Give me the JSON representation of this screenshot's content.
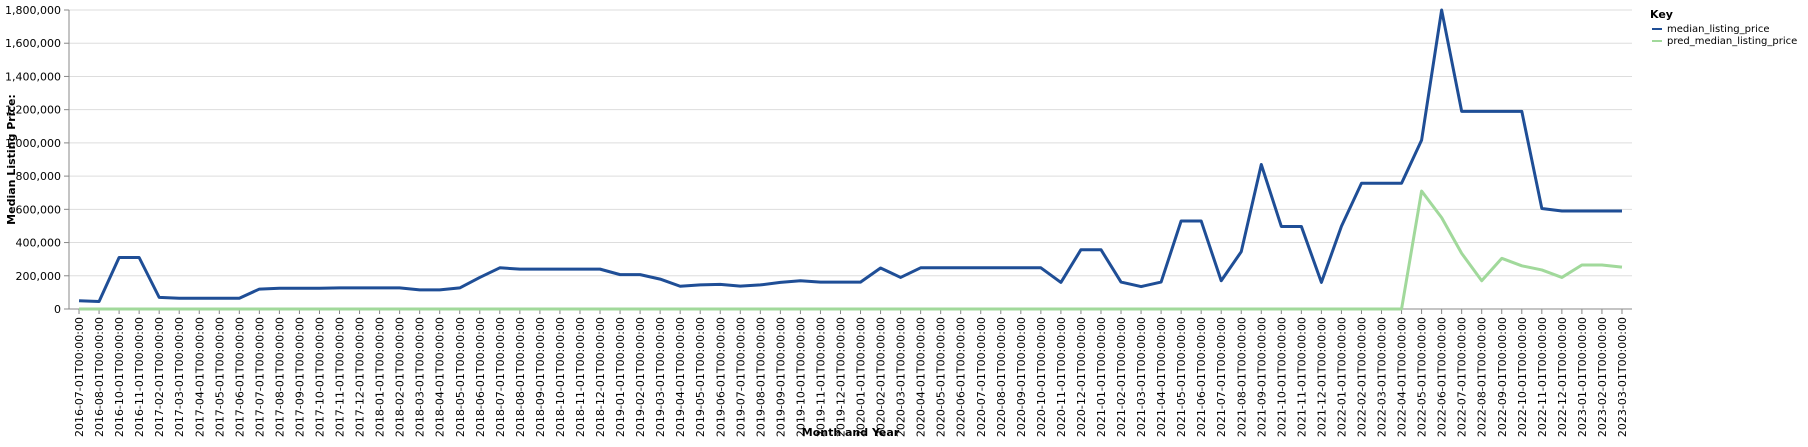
{
  "chart_data": {
    "type": "line",
    "xlabel": "Month and Year",
    "ylabel": "Median Listing Price:",
    "ylim": [
      0,
      1800000
    ],
    "yticks": [
      0,
      200000,
      400000,
      600000,
      800000,
      1000000,
      1200000,
      1400000,
      1600000,
      1800000
    ],
    "yticks_labels": [
      "0",
      "200,000",
      "400,000",
      "600,000",
      "800,000",
      "1,000,000",
      "1,200,000",
      "1,400,000",
      "1,600,000",
      "1,800,000"
    ],
    "grid": true,
    "legend": {
      "title": "Key",
      "position": "top-right"
    },
    "x": [
      "2016-07-01T00:00:00",
      "2016-08-01T00:00:00",
      "2016-10-01T00:00:00",
      "2016-11-01T00:00:00",
      "2017-02-01T00:00:00",
      "2017-03-01T00:00:00",
      "2017-04-01T00:00:00",
      "2017-05-01T00:00:00",
      "2017-06-01T00:00:00",
      "2017-07-01T00:00:00",
      "2017-08-01T00:00:00",
      "2017-09-01T00:00:00",
      "2017-10-01T00:00:00",
      "2017-11-01T00:00:00",
      "2017-12-01T00:00:00",
      "2018-01-01T00:00:00",
      "2018-02-01T00:00:00",
      "2018-03-01T00:00:00",
      "2018-04-01T00:00:00",
      "2018-05-01T00:00:00",
      "2018-06-01T00:00:00",
      "2018-07-01T00:00:00",
      "2018-08-01T00:00:00",
      "2018-09-01T00:00:00",
      "2018-10-01T00:00:00",
      "2018-11-01T00:00:00",
      "2018-12-01T00:00:00",
      "2019-01-01T00:00:00",
      "2019-02-01T00:00:00",
      "2019-03-01T00:00:00",
      "2019-04-01T00:00:00",
      "2019-05-01T00:00:00",
      "2019-06-01T00:00:00",
      "2019-07-01T00:00:00",
      "2019-08-01T00:00:00",
      "2019-09-01T00:00:00",
      "2019-10-01T00:00:00",
      "2019-11-01T00:00:00",
      "2019-12-01T00:00:00",
      "2020-01-01T00:00:00",
      "2020-02-01T00:00:00",
      "2020-03-01T00:00:00",
      "2020-04-01T00:00:00",
      "2020-05-01T00:00:00",
      "2020-06-01T00:00:00",
      "2020-07-01T00:00:00",
      "2020-08-01T00:00:00",
      "2020-09-01T00:00:00",
      "2020-10-01T00:00:00",
      "2020-11-01T00:00:00",
      "2020-12-01T00:00:00",
      "2021-01-01T00:00:00",
      "2021-02-01T00:00:00",
      "2021-03-01T00:00:00",
      "2021-04-01T00:00:00",
      "2021-05-01T00:00:00",
      "2021-06-01T00:00:00",
      "2021-07-01T00:00:00",
      "2021-08-01T00:00:00",
      "2021-09-01T00:00:00",
      "2021-10-01T00:00:00",
      "2021-11-01T00:00:00",
      "2021-12-01T00:00:00",
      "2022-01-01T00:00:00",
      "2022-02-01T00:00:00",
      "2022-03-01T00:00:00",
      "2022-04-01T00:00:00",
      "2022-05-01T00:00:00",
      "2022-06-01T00:00:00",
      "2022-07-01T00:00:00",
      "2022-08-01T00:00:00",
      "2022-09-01T00:00:00",
      "2022-10-01T00:00:00",
      "2022-11-01T00:00:00",
      "2022-12-01T00:00:00",
      "2023-01-01T00:00:00",
      "2023-02-01T00:00:00",
      "2023-03-01T00:00:00"
    ],
    "series": [
      {
        "name": "median_listing_price",
        "color": "#1f4e96",
        "values": [
          50000,
          45000,
          310000,
          310000,
          70000,
          65000,
          65000,
          65000,
          65000,
          120000,
          125000,
          125000,
          125000,
          127000,
          127000,
          127000,
          127000,
          115000,
          115000,
          127000,
          190000,
          248000,
          240000,
          240000,
          240000,
          240000,
          240000,
          207000,
          207000,
          180000,
          137000,
          145000,
          148000,
          138000,
          145000,
          160000,
          170000,
          162000,
          162000,
          162000,
          247000,
          190000,
          248000,
          248000,
          248000,
          248000,
          248000,
          248000,
          248000,
          160000,
          357000,
          357000,
          162000,
          135000,
          162000,
          530000,
          530000,
          170000,
          345000,
          870000,
          497000,
          497000,
          160000,
          498000,
          757000,
          757000,
          757000,
          1017000,
          1800000,
          1190000,
          1190000,
          1190000,
          1190000,
          605000,
          590000,
          590000,
          590000,
          590000
        ]
      },
      {
        "name": "pred_median_listing_price",
        "color": "#a1d99b",
        "values": [
          0,
          0,
          0,
          0,
          0,
          0,
          0,
          0,
          0,
          0,
          0,
          0,
          0,
          0,
          0,
          0,
          0,
          0,
          0,
          0,
          0,
          0,
          0,
          0,
          0,
          0,
          0,
          0,
          0,
          0,
          0,
          0,
          0,
          0,
          0,
          0,
          0,
          0,
          0,
          0,
          0,
          0,
          0,
          0,
          0,
          0,
          0,
          0,
          0,
          0,
          0,
          0,
          0,
          0,
          0,
          0,
          0,
          0,
          0,
          0,
          0,
          0,
          0,
          0,
          0,
          0,
          0,
          710000,
          550000,
          335000,
          170000,
          305000,
          260000,
          235000,
          190000,
          265000,
          265000,
          252000
        ]
      }
    ]
  }
}
